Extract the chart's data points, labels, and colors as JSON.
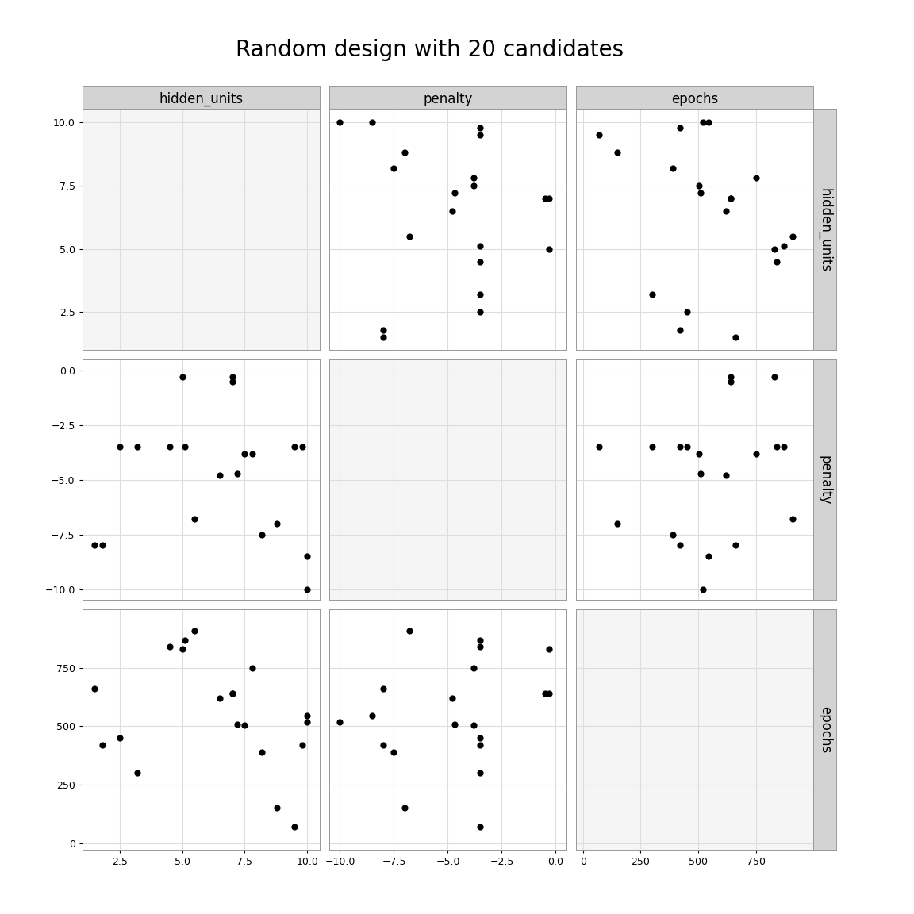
{
  "title": "Random design with 20 candidates",
  "params": [
    "hidden_units",
    "penalty",
    "epochs"
  ],
  "points": {
    "hidden_units": [
      1.5,
      1.8,
      2.5,
      3.2,
      4.5,
      5.0,
      5.1,
      5.5,
      6.5,
      7.0,
      7.0,
      7.2,
      7.5,
      7.8,
      8.2,
      8.8,
      9.5,
      9.8,
      10.0,
      10.0
    ],
    "penalty": [
      -8.0,
      -8.0,
      -3.5,
      -3.5,
      -3.5,
      -0.3,
      -3.5,
      -6.8,
      -4.8,
      -0.3,
      -0.5,
      -4.7,
      -3.8,
      -3.8,
      -7.5,
      -7.0,
      -3.5,
      -3.5,
      -10.0,
      -8.5
    ],
    "epochs": [
      660,
      420,
      450,
      300,
      840,
      830,
      870,
      910,
      620,
      640,
      640,
      510,
      505,
      750,
      390,
      150,
      70,
      420,
      520,
      545
    ]
  },
  "xlims": {
    "hidden_units": [
      1.0,
      10.5
    ],
    "penalty": [
      -10.5,
      0.5
    ],
    "epochs": [
      -30,
      1000
    ]
  },
  "ylims": {
    "hidden_units": [
      1.0,
      10.5
    ],
    "penalty": [
      -10.5,
      0.5
    ],
    "epochs": [
      -30,
      1000
    ]
  },
  "xticks": {
    "hidden_units": [
      2.5,
      5.0,
      7.5,
      10.0
    ],
    "penalty": [
      -10.0,
      -7.5,
      -5.0,
      -2.5,
      0.0
    ],
    "epochs": [
      0,
      250,
      500,
      750
    ]
  },
  "yticks": {
    "hidden_units": [
      2.5,
      5.0,
      7.5,
      10.0
    ],
    "penalty": [
      -10.0,
      -7.5,
      -5.0,
      -2.5,
      0.0
    ],
    "epochs": [
      0,
      250,
      500,
      750
    ]
  },
  "plot_bg": "#ffffff",
  "diag_bg": "#f5f5f5",
  "grid_color": "#dddddd",
  "point_color": "black",
  "point_size": 35,
  "header_bg": "#d3d3d3",
  "header_text_color": "black",
  "header_fontsize": 12,
  "tick_fontsize": 9,
  "title_fontsize": 20
}
